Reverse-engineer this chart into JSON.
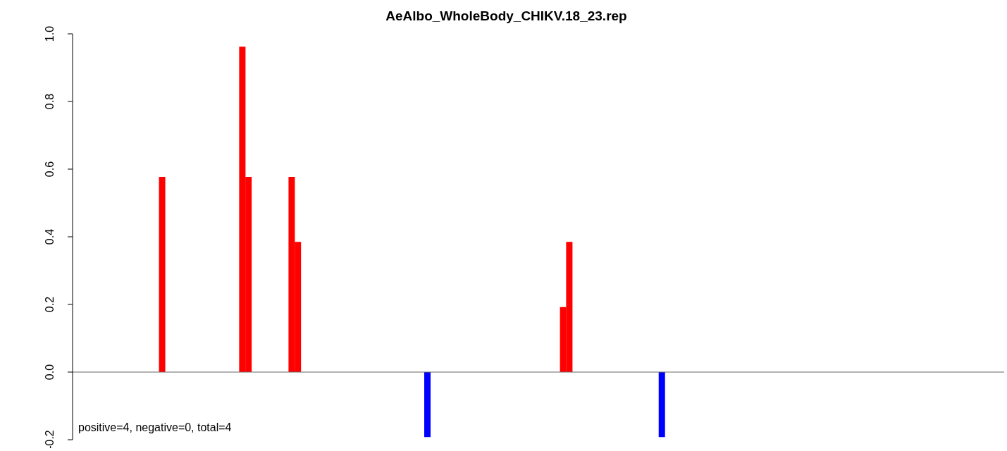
{
  "chart_data": {
    "type": "bar",
    "title": "AeAlbo_WholeBody_CHIKV.18_23.rep",
    "categories": [
      null,
      null,
      null,
      null,
      null,
      null,
      null,
      null,
      null,
      null,
      null,
      null,
      null,
      null,
      null,
      null,
      null,
      null,
      null,
      null,
      null,
      null,
      null,
      null,
      null,
      null,
      null,
      null,
      null,
      null,
      null,
      null,
      null,
      null,
      null,
      null,
      null,
      null,
      null,
      null,
      null,
      null,
      null,
      null,
      null,
      null,
      null,
      null,
      null,
      null,
      null,
      null,
      null,
      null,
      null,
      null,
      null,
      null,
      null,
      null,
      null,
      null,
      null,
      null,
      null,
      null,
      null,
      null,
      null,
      null,
      null,
      null,
      null,
      null,
      null,
      null,
      null,
      null,
      null,
      null,
      null,
      null,
      null,
      null,
      null,
      null,
      null,
      null,
      null,
      null,
      null,
      null,
      null,
      null,
      null,
      null,
      null,
      null,
      null,
      null,
      null,
      null,
      null,
      null,
      null,
      null,
      null,
      null,
      null,
      null,
      null,
      null,
      null,
      null,
      null,
      null,
      null,
      null,
      null,
      null,
      null,
      null,
      null,
      null,
      null,
      null,
      null,
      null,
      null,
      null,
      null,
      null,
      null,
      null,
      null,
      null,
      null,
      null,
      null,
      null,
      null,
      null,
      null,
      null,
      null,
      null,
      null,
      null,
      null,
      null,
      null
    ],
    "values": [
      null,
      null,
      null,
      null,
      null,
      null,
      null,
      null,
      null,
      null,
      null,
      null,
      null,
      null,
      0.577,
      null,
      null,
      null,
      null,
      null,
      null,
      null,
      null,
      null,
      null,
      null,
      null,
      0.962,
      0.577,
      null,
      null,
      null,
      null,
      null,
      null,
      0.577,
      0.385,
      null,
      null,
      null,
      null,
      null,
      null,
      null,
      null,
      null,
      null,
      null,
      null,
      null,
      null,
      null,
      null,
      null,
      null,
      null,
      null,
      -0.192,
      null,
      null,
      null,
      null,
      null,
      null,
      null,
      null,
      null,
      null,
      null,
      null,
      null,
      null,
      null,
      null,
      null,
      null,
      null,
      null,
      null,
      0.192,
      0.385,
      null,
      null,
      null,
      null,
      null,
      null,
      null,
      null,
      null,
      null,
      null,
      null,
      null,
      null,
      -0.192,
      null,
      null,
      null,
      null,
      null,
      null,
      null,
      null,
      null,
      null,
      null,
      null,
      null,
      null,
      null,
      null,
      null,
      null,
      null,
      null,
      null,
      null,
      null,
      null,
      null,
      null,
      null,
      null,
      null,
      null,
      null,
      null,
      null,
      null,
      null,
      null,
      null,
      null,
      null,
      null,
      null,
      null,
      null,
      null,
      null,
      null,
      null,
      null,
      null,
      null,
      null,
      null,
      null,
      null,
      null
    ],
    "colors": [
      null,
      null,
      null,
      null,
      null,
      null,
      null,
      null,
      null,
      null,
      null,
      null,
      null,
      null,
      "#ff0000",
      null,
      null,
      null,
      null,
      null,
      null,
      null,
      null,
      null,
      null,
      null,
      null,
      "#ff0000",
      "#ff0000",
      null,
      null,
      null,
      null,
      null,
      null,
      "#ff0000",
      "#ff0000",
      null,
      null,
      null,
      null,
      null,
      null,
      null,
      null,
      null,
      null,
      null,
      null,
      null,
      null,
      null,
      null,
      null,
      null,
      null,
      null,
      "#0000ff",
      null,
      null,
      null,
      null,
      null,
      null,
      null,
      null,
      null,
      null,
      null,
      null,
      null,
      null,
      null,
      null,
      null,
      null,
      null,
      null,
      null,
      "#ff0000",
      "#ff0000",
      null,
      null,
      null,
      null,
      null,
      null,
      null,
      null,
      null,
      null,
      null,
      null,
      null,
      null,
      "#0000ff",
      null,
      null,
      null,
      null,
      null,
      null,
      null,
      null,
      null,
      null,
      null,
      null,
      null,
      null,
      null,
      null,
      null,
      null,
      null,
      null,
      null,
      null,
      null,
      null,
      null,
      null,
      null,
      null,
      null,
      null,
      null,
      null,
      null,
      null,
      null,
      null,
      null,
      null,
      null,
      null,
      null,
      null,
      null,
      null,
      null,
      null,
      null,
      null,
      null,
      null,
      null,
      null,
      null,
      null,
      null
    ],
    "ylim": [
      -0.2,
      1.0
    ],
    "yticks": [
      {
        "value": -0.2,
        "label": "-0.2"
      },
      {
        "value": 0,
        "label": "0.0"
      },
      {
        "value": 0.2,
        "label": "0.2"
      },
      {
        "value": 0.4,
        "label": "0.4"
      },
      {
        "value": 0.6,
        "label": "0.6"
      },
      {
        "value": 0.8,
        "label": "0.8"
      },
      {
        "value": 1.0,
        "label": "1.0"
      }
    ],
    "tick_labels": "y",
    "ref_lines": [
      {
        "axis": "y",
        "value": 0,
        "color": "#666666"
      }
    ],
    "annotations": [
      "positive=4, negative=0, total=4"
    ]
  }
}
